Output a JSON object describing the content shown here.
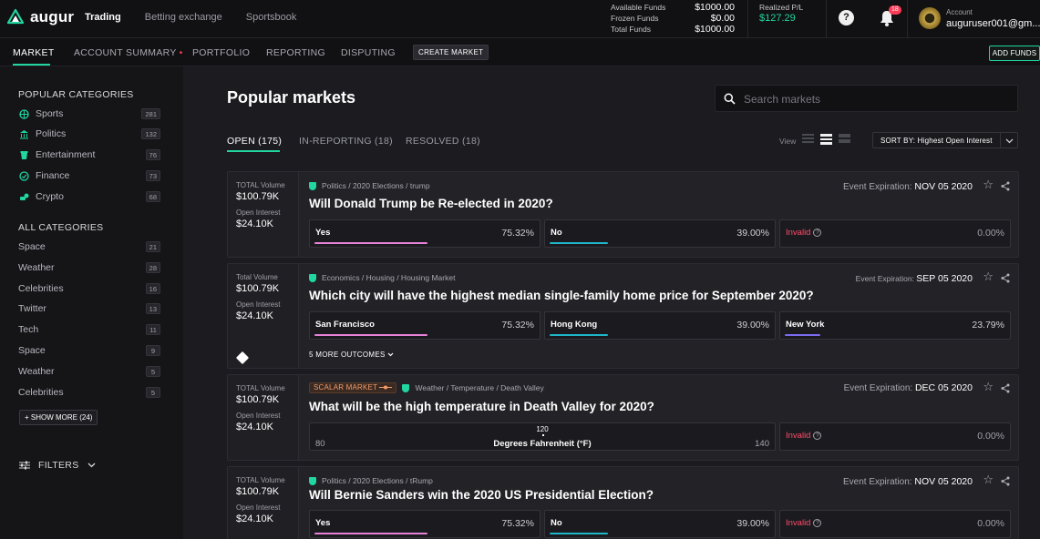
{
  "app": {
    "name": "augur"
  },
  "topnav": [
    {
      "label": "Trading",
      "active": true
    },
    {
      "label": "Betting exchange",
      "active": false
    },
    {
      "label": "Sportsbook",
      "active": false
    }
  ],
  "funds": {
    "available_label": "Available Funds",
    "available": "$1000.00",
    "frozen_label": "Frozen Funds",
    "frozen": "$0.00",
    "total_label": "Total Funds",
    "total": "$1000.00"
  },
  "pl": {
    "label": "Realized P/L",
    "value": "$127.29"
  },
  "help": {
    "symbol": "?"
  },
  "notifications": {
    "count": "18"
  },
  "account": {
    "label": "Account",
    "user": "auguruser001@gm..."
  },
  "subnav": {
    "market": "MARKET",
    "account_summary": "ACCOUNT SUMMARY",
    "portfolio": "PORTFOLIO",
    "reporting": "REPORTING",
    "disputing": "DISPUTING",
    "create_market": "CREATE MARKET",
    "add_funds": "ADD FUNDS",
    "account_summary_marker": "•"
  },
  "sidebar": {
    "popular_heading": "POPULAR CATEGORIES",
    "popular": [
      {
        "label": "Sports",
        "count": "281",
        "icon": "sports-icon"
      },
      {
        "label": "Politics",
        "count": "132",
        "icon": "politics-icon"
      },
      {
        "label": "Entertainment",
        "count": "76",
        "icon": "entertainment-icon"
      },
      {
        "label": "Finance",
        "count": "73",
        "icon": "finance-icon"
      },
      {
        "label": "Crypto",
        "count": "68",
        "icon": "crypto-icon"
      }
    ],
    "all_heading": "ALL CATEGORIES",
    "all": [
      {
        "label": "Space",
        "count": "21"
      },
      {
        "label": "Weather",
        "count": "28"
      },
      {
        "label": "Celebrities",
        "count": "16"
      },
      {
        "label": "Twitter",
        "count": "13"
      },
      {
        "label": "Tech",
        "count": "11"
      },
      {
        "label": "Space",
        "count": "9"
      },
      {
        "label": "Weather",
        "count": "5"
      },
      {
        "label": "Celebrities",
        "count": "5"
      }
    ],
    "show_more": "+ SHOW MORE (24)",
    "filters": "FILTERS"
  },
  "main": {
    "title": "Popular markets",
    "search_placeholder": "Search markets",
    "tabs": [
      {
        "label": "OPEN (175)",
        "active": true
      },
      {
        "label": "IN-REPORTING (18)",
        "active": false
      },
      {
        "label": "RESOLVED (18)",
        "active": false
      }
    ],
    "view_label": "View",
    "sort_label": "SORT BY: Highest Open Interest"
  },
  "colors": {
    "accent": "#21d6a0",
    "invalid": "#ff4d6a",
    "bar_pink": "#e882d8",
    "bar_teal": "#1fb6c9",
    "bar_purple": "#7c6cf0",
    "scalar": "#f49c6a"
  },
  "markets": [
    {
      "vol_label": "TOTAL Volume",
      "vol": "$100.79K",
      "oi_label": "Open Interest",
      "oi": "$24.10K",
      "category": "Politics / 2020 Elections / trump",
      "exp_label": "Event Expiration:",
      "exp": "NOV 05 2020",
      "question": "Will Donald Trump be Re-elected in 2020?",
      "outcomes": [
        {
          "name": "Yes",
          "pct": "75.32%",
          "value": 75.32
        },
        {
          "name": "No",
          "pct": "39.00%",
          "value": 39.0
        },
        {
          "name": "Invalid",
          "pct": "0.00%",
          "value": 0
        }
      ]
    },
    {
      "vol_label": "Total Volume",
      "vol": "$100.79K",
      "oi_label": "Open Interest",
      "oi": "$24.10K",
      "category": "Economics / Housing / Housing Market",
      "exp_label": "Event Expiration:",
      "exp": "SEP 05 2020",
      "question": "Which city will have the highest median single-family home price for September 2020?",
      "outcomes": [
        {
          "name": "San Francisco",
          "pct": "75.32%",
          "value": 75.32
        },
        {
          "name": "Hong Kong",
          "pct": "39.00%",
          "value": 39.0
        },
        {
          "name": "New York",
          "pct": "23.79%",
          "value": 23.79
        }
      ],
      "more": "5 MORE OUTCOMES"
    },
    {
      "vol_label": "TOTAL Volume",
      "vol": "$100.79K",
      "oi_label": "Open Interest",
      "oi": "$24.10K",
      "scalar_tag": "SCALAR MARKET",
      "category": "Weather / Temperature / Death Valley",
      "exp_label": "Event Expiration:",
      "exp": "DEC 05 2020",
      "question": "What will be the high temperature in Death Valley for 2020?",
      "scalar": {
        "min": "80",
        "max": "140",
        "mid": "120",
        "label": "Degrees Fahrenheit (°F)"
      },
      "invalid": {
        "name": "Invalid",
        "pct": "0.00%"
      }
    },
    {
      "vol_label": "TOTAL Volume",
      "vol": "$100.79K",
      "oi_label": "Open Interest",
      "oi": "$24.10K",
      "category": "Politics / 2020 Elections / tRump",
      "exp_label": "Event Expiration:",
      "exp": "NOV 05 2020",
      "question": "Will Bernie Sanders win the 2020 US Presidential Election?",
      "outcomes": [
        {
          "name": "Yes",
          "pct": "75.32%",
          "value": 75.32
        },
        {
          "name": "No",
          "pct": "39.00%",
          "value": 39.0
        },
        {
          "name": "Invalid",
          "pct": "0.00%",
          "value": 0
        }
      ]
    }
  ]
}
